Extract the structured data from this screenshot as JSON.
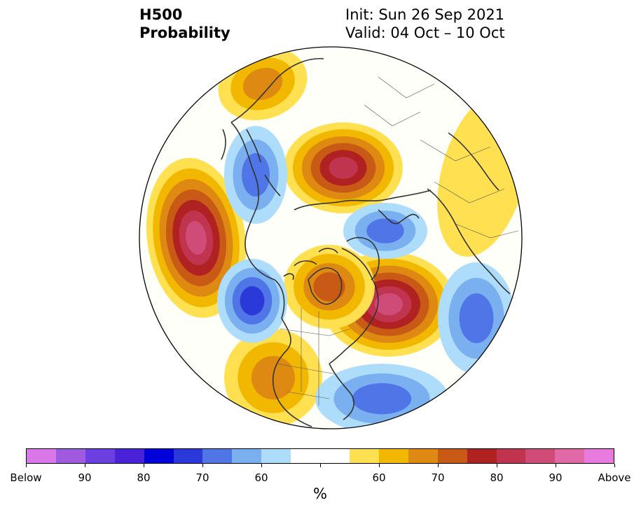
{
  "title": {
    "line1": "H500",
    "line2": "Probability",
    "init": "Init: Sun 26 Sep 2021",
    "valid": "Valid: 04 Oct – 10 Oct"
  },
  "colorbar": {
    "unit": "%",
    "labels": [
      "Below",
      "90",
      "80",
      "70",
      "60",
      "60",
      "70",
      "80",
      "90",
      "Above"
    ],
    "colors": [
      "#d977e8",
      "#a05ae0",
      "#6b3fe0",
      "#4a22d8",
      "#0000d8",
      "#2a3ad8",
      "#4f75e6",
      "#7ab0f0",
      "#aedcfb",
      "#ffffff",
      "#ffffff",
      "#ffe050",
      "#f2b800",
      "#de8a12",
      "#c85a16",
      "#b02222",
      "#c0344f",
      "#d04c78",
      "#e16aa6",
      "#e97bdf"
    ]
  },
  "anomalies": [
    {
      "name": "ridge-north-pacific-west",
      "category": "above",
      "peak": 90
    },
    {
      "name": "ridge-north-atlantic",
      "category": "above",
      "peak": 90
    },
    {
      "name": "ridge-siberia",
      "category": "above",
      "peak": 85
    },
    {
      "name": "ridge-canada",
      "category": "above",
      "peak": 75
    },
    {
      "name": "ridge-western-us",
      "category": "above",
      "peak": 70
    },
    {
      "name": "ridge-east-asia",
      "category": "above",
      "peak": 65
    },
    {
      "name": "ridge-europe-east",
      "category": "above",
      "peak": 55
    },
    {
      "name": "trough-eastern-us",
      "category": "below",
      "peak": 70
    },
    {
      "name": "trough-gulf-of-alaska",
      "category": "below",
      "peak": 75
    },
    {
      "name": "trough-kamchatka",
      "category": "below",
      "peak": 70
    },
    {
      "name": "trough-scandinavia",
      "category": "below",
      "peak": 70
    },
    {
      "name": "trough-central-atlantic",
      "category": "below",
      "peak": 70
    }
  ]
}
